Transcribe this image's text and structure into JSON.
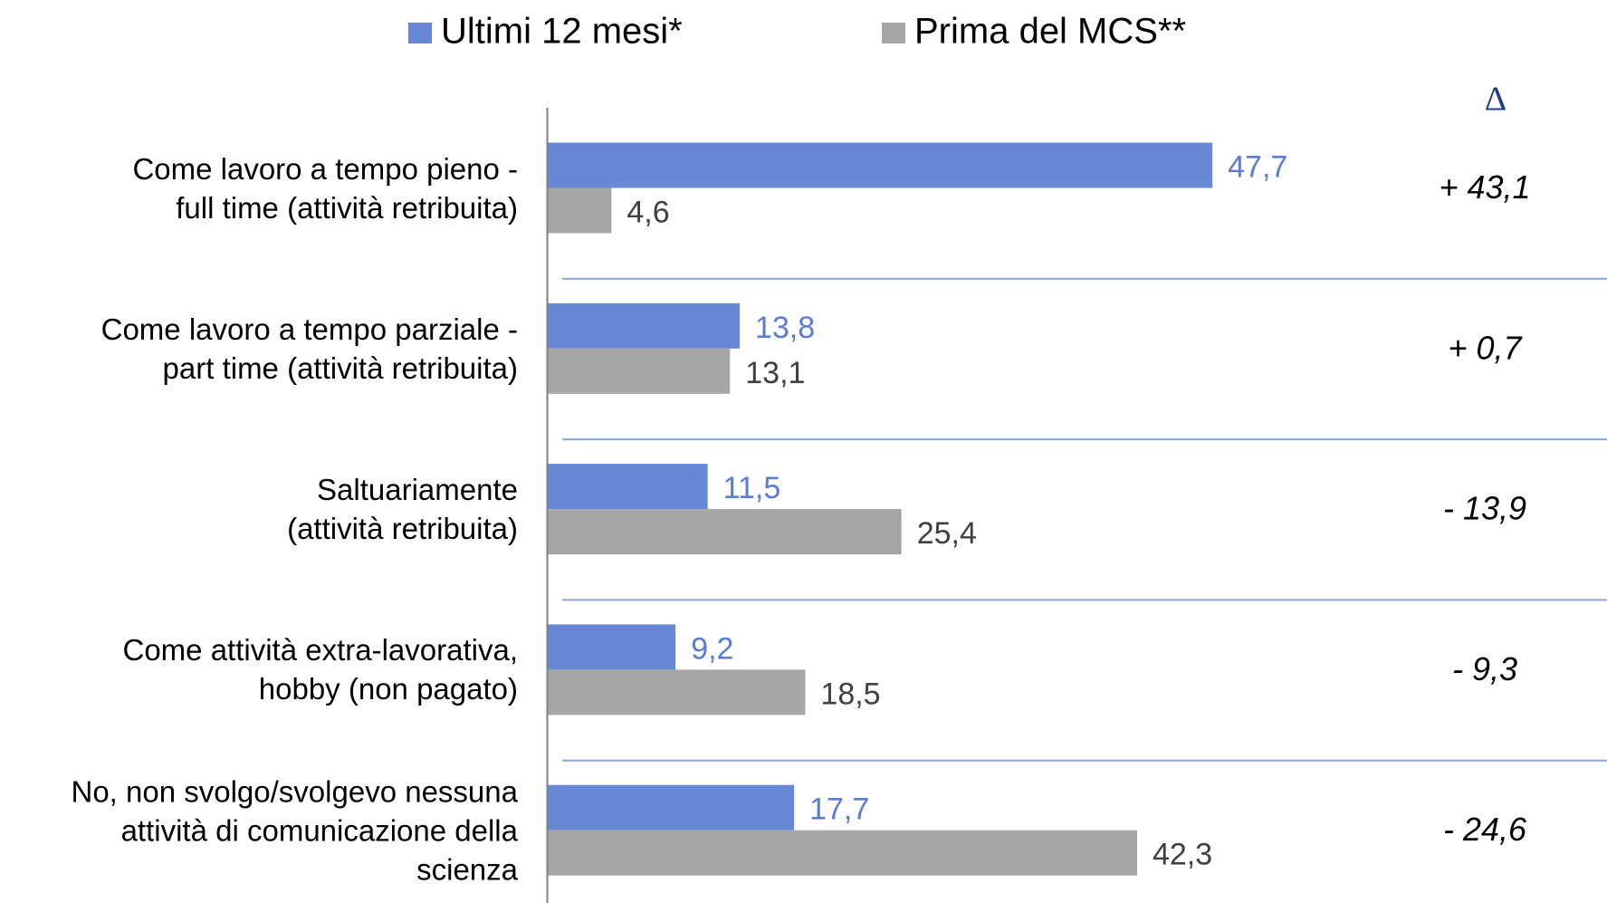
{
  "chart_data": {
    "type": "bar",
    "orientation": "horizontal",
    "categories": [
      "Come lavoro a tempo pieno -\nfull time (attività retribuita)",
      "Come lavoro a tempo parziale -\npart time (attività retribuita)",
      "Saltuariamente\n(attività retribuita)",
      "Come attività extra-lavorativa,\nhobby (non pagato)",
      "No, non svolgo/svolgevo nessuna\nattività di comunicazione della\nscienza"
    ],
    "series": [
      {
        "name": "Ultimi 12 mesi*",
        "color": "#6887d4",
        "label_color": "#5b7bd5",
        "values": [
          47.7,
          13.8,
          11.5,
          9.2,
          17.7
        ],
        "value_labels": [
          "47,7",
          "13,8",
          "11,5",
          "9,2",
          "17,7"
        ]
      },
      {
        "name": "Prima del MCS**",
        "color": "#a6a6a6",
        "label_color": "#404040",
        "values": [
          4.6,
          13.1,
          25.4,
          18.5,
          42.3
        ],
        "value_labels": [
          "4,6",
          "13,1",
          "25,4",
          "18,5",
          "42,3"
        ]
      }
    ],
    "delta_header": "Δ",
    "annotations": [
      "+ 43,1",
      "+ 0,7",
      "- 13,9",
      "- 9,3",
      "- 24,6"
    ],
    "xlim": [
      0,
      76
    ],
    "legend": "top"
  }
}
